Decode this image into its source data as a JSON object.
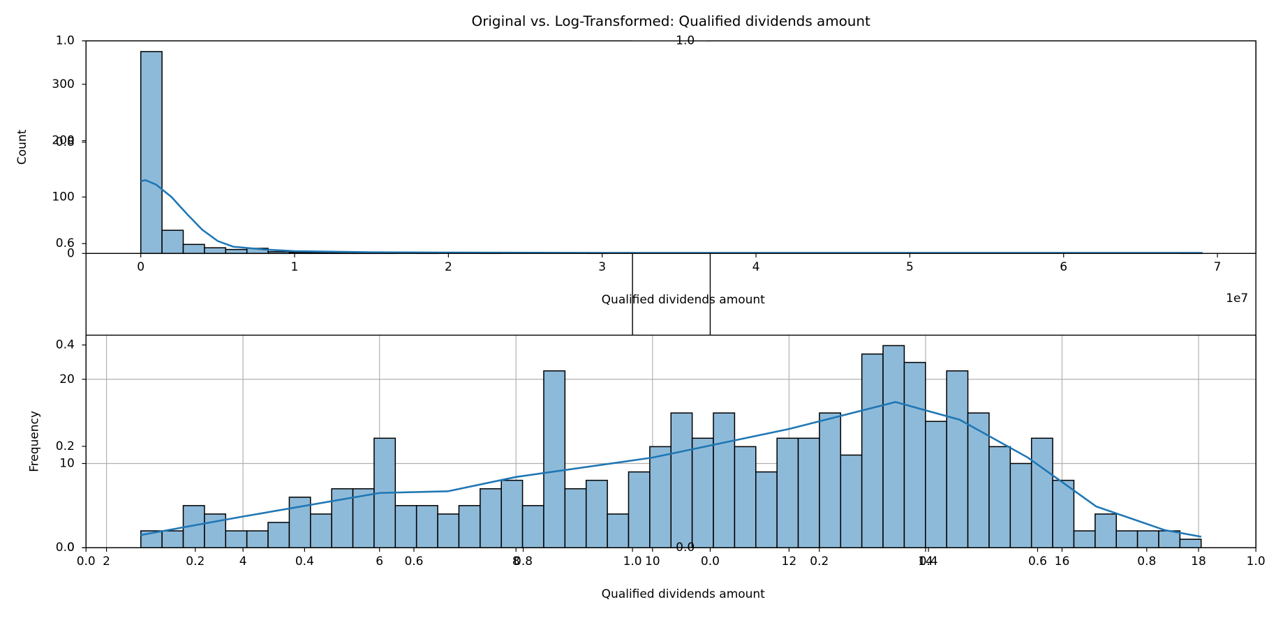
{
  "chart_data": [
    {
      "type": "histogram",
      "title": "Original vs. Log-Transformed: Qualified dividends amount",
      "xlabel": "Qualified dividends amount",
      "ylabel": "Count",
      "x_offset_label": "1e7",
      "color": "#8ebad9",
      "edgecolor": "#000000",
      "bins": [
        0,
        1380000,
        2760000,
        4140000,
        5520000,
        6900000,
        8280000,
        9660000,
        11040000,
        12420000,
        13800000,
        15180000,
        16560000,
        17940000,
        19320000,
        20700000,
        22080000,
        23460000,
        24840000,
        26220000,
        27600000,
        28980000,
        30360000,
        31740000,
        33120000,
        34500000,
        35880000,
        37260000,
        38640000,
        40020000,
        41400000,
        42780000,
        44160000,
        45540000,
        46920000,
        48300000,
        49680000,
        51060000,
        52440000,
        53820000,
        55200000,
        56580000,
        57960000,
        59340000,
        60720000,
        62100000,
        63480000,
        64860000,
        66240000,
        67620000,
        69000000
      ],
      "counts": [
        358,
        41,
        16,
        10,
        7,
        9,
        3,
        2,
        2,
        1,
        1,
        1,
        0,
        1,
        0,
        0,
        1,
        0,
        0,
        0,
        0,
        1,
        0,
        0,
        0,
        0,
        0,
        0,
        0,
        0,
        0,
        0,
        0,
        0,
        0,
        0,
        0,
        0,
        0,
        0,
        0,
        0,
        0,
        0,
        0,
        0,
        0,
        0,
        0,
        1
      ],
      "kde": {
        "color": "#1f77b4",
        "x": [
          0,
          300000,
          1000000,
          2000000,
          3000000,
          4000000,
          5000000,
          6000000,
          8000000,
          10000000,
          15000000,
          20000000,
          30000000,
          40000000,
          50000000,
          60000000,
          69000000
        ],
        "y": [
          128,
          130,
          122,
          100,
          70,
          42,
          22,
          12,
          7,
          4,
          2,
          1.5,
          1,
          1,
          1,
          1,
          1
        ]
      },
      "xlim": [
        -3560000,
        72500000
      ],
      "xticks": [
        0,
        {
          "value": 10000000,
          "label": "1"
        },
        {
          "value": 20000000,
          "label": "2"
        },
        {
          "value": 30000000,
          "label": "3"
        },
        {
          "value": 40000000,
          "label": "4"
        },
        {
          "value": 50000000,
          "label": "5"
        },
        {
          "value": 60000000,
          "label": "6"
        },
        {
          "value": 70000000,
          "label": "7"
        }
      ],
      "ylim": [
        0,
        377
      ],
      "yticks": [
        0,
        100,
        200,
        300
      ],
      "grid": false
    },
    {
      "type": "histogram",
      "xlabel": "Qualified dividends amount",
      "ylabel": "Frequency",
      "color": "#8ebad9",
      "edgecolor": "#000000",
      "bins": [
        2.503,
        2.8137,
        3.1244,
        3.4351,
        3.7458,
        4.0565,
        4.3672,
        4.6779,
        4.9886,
        5.2993,
        5.61,
        5.9207,
        6.2314,
        6.5421,
        6.8528,
        7.1635,
        7.4742,
        7.7849,
        8.0956,
        8.4063,
        8.717,
        9.0277,
        9.3384,
        9.6491,
        9.9598,
        10.2705,
        10.5812,
        10.8919,
        11.2026,
        11.5133,
        11.824,
        12.1347,
        12.4454,
        12.7561,
        13.0668,
        13.3775,
        13.6882,
        13.9989,
        14.3096,
        14.6203,
        14.931,
        15.2417,
        15.5524,
        15.8631,
        16.1738,
        16.4845,
        16.7952,
        17.1059,
        17.4166,
        17.7273,
        18.038
      ],
      "counts": [
        2,
        2,
        5,
        4,
        2,
        2,
        3,
        6,
        4,
        7,
        7,
        13,
        5,
        5,
        4,
        5,
        7,
        8,
        5,
        21,
        7,
        8,
        4,
        9,
        12,
        16,
        13,
        16,
        12,
        9,
        13,
        13,
        16,
        11,
        23,
        24,
        22,
        15,
        21,
        16,
        12,
        10,
        13,
        8,
        2,
        4,
        2,
        2,
        2,
        1
      ],
      "kde": {
        "color": "#1f77b4",
        "x": [
          2.5,
          4,
          6,
          7,
          8,
          10,
          12,
          13.56,
          14.5,
          15.5,
          16,
          16.5,
          17.5,
          18.04
        ],
        "y": [
          1.5,
          3.7,
          6.5,
          6.7,
          8.4,
          10.7,
          14.1,
          17.3,
          15.2,
          10.7,
          7.8,
          4.9,
          2.1,
          1.3
        ]
      },
      "xlim": [
        1.7,
        18.84
      ],
      "xticks": [
        2,
        4,
        6,
        8,
        10,
        12,
        14,
        16,
        18
      ],
      "ylim": [
        0,
        25.24
      ],
      "yticks": [
        0,
        10,
        20
      ],
      "grid": true
    },
    {
      "type": "axes",
      "xlim": [
        0,
        1
      ],
      "ylim": [
        0,
        1
      ],
      "xticks": [
        {
          "value": 0,
          "label": "0.0"
        },
        {
          "value": 0.2,
          "label": "0.2"
        },
        {
          "value": 0.4,
          "label": "0.4"
        },
        {
          "value": 0.6,
          "label": "0.6"
        },
        {
          "value": 0.8,
          "label": "0.8"
        },
        {
          "value": 1,
          "label": "1.0"
        }
      ],
      "yticks": [
        {
          "value": 0,
          "label": "0.0"
        },
        {
          "value": 0.2,
          "label": "0.2"
        },
        {
          "value": 0.4,
          "label": "0.4"
        },
        {
          "value": 0.6,
          "label": "0.6"
        },
        {
          "value": 0.8,
          "label": "0.8"
        },
        {
          "value": 1,
          "label": "1.0"
        }
      ]
    },
    {
      "type": "axes",
      "xlim": [
        0,
        1
      ],
      "ylim": [
        0,
        1
      ],
      "xticks": [
        {
          "value": 0,
          "label": "0.0"
        },
        {
          "value": 0.2,
          "label": "0.2"
        },
        {
          "value": 0.4,
          "label": "0.4"
        },
        {
          "value": 0.6,
          "label": "0.6"
        },
        {
          "value": 0.8,
          "label": "0.8"
        },
        {
          "value": 1,
          "label": "1.0"
        }
      ],
      "yticks": [
        {
          "value": 0,
          "label": "0.0"
        },
        {
          "value": 1,
          "label": "1.0"
        }
      ]
    }
  ]
}
